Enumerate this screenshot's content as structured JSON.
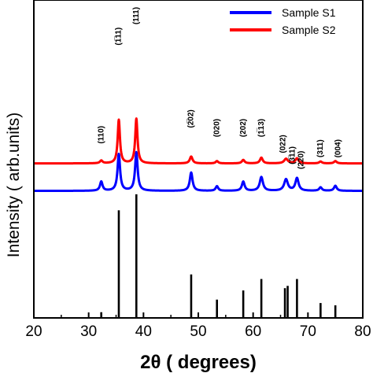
{
  "chart_data": {
    "type": "line",
    "xlabel": "2θ  ( degrees)",
    "ylabel": "Intensity ( arb.units)",
    "xlim": [
      20,
      80
    ],
    "x_ticks": [
      "20",
      "30",
      "40",
      "50",
      "60",
      "70",
      "80"
    ],
    "grid": false,
    "legend_position": "top-right",
    "series": [
      {
        "name": "Sample S1",
        "color": "#0000ff",
        "baseline": 0.555,
        "peaks": [
          {
            "x": 32.3,
            "h": 0.04,
            "w": 0.28
          },
          {
            "x": 35.5,
            "h": 0.16,
            "w": 0.28
          },
          {
            "x": 38.7,
            "h": 0.168,
            "w": 0.28
          },
          {
            "x": 48.7,
            "h": 0.08,
            "w": 0.3
          },
          {
            "x": 53.4,
            "h": 0.02,
            "w": 0.28
          },
          {
            "x": 58.2,
            "h": 0.04,
            "w": 0.3
          },
          {
            "x": 61.5,
            "h": 0.06,
            "w": 0.35
          },
          {
            "x": 66.0,
            "h": 0.05,
            "w": 0.4
          },
          {
            "x": 68.0,
            "h": 0.055,
            "w": 0.35
          },
          {
            "x": 72.3,
            "h": 0.015,
            "w": 0.3
          },
          {
            "x": 75.0,
            "h": 0.022,
            "w": 0.3
          }
        ]
      },
      {
        "name": "Sample S2",
        "color": "#ff0000",
        "baseline": 0.675,
        "peaks": [
          {
            "x": 32.3,
            "h": 0.012,
            "w": 0.28
          },
          {
            "x": 35.5,
            "h": 0.19,
            "w": 0.25
          },
          {
            "x": 38.7,
            "h": 0.195,
            "w": 0.25
          },
          {
            "x": 48.7,
            "h": 0.03,
            "w": 0.3
          },
          {
            "x": 53.4,
            "h": 0.01,
            "w": 0.28
          },
          {
            "x": 58.2,
            "h": 0.015,
            "w": 0.3
          },
          {
            "x": 61.5,
            "h": 0.025,
            "w": 0.3
          },
          {
            "x": 66.0,
            "h": 0.02,
            "w": 0.4
          },
          {
            "x": 68.0,
            "h": 0.022,
            "w": 0.35
          },
          {
            "x": 72.3,
            "h": 0.008,
            "w": 0.3
          },
          {
            "x": 75.0,
            "h": 0.01,
            "w": 0.3
          }
        ]
      }
    ],
    "reference": {
      "color": "#000000",
      "sticks": [
        {
          "x": 32.3,
          "h": 0.025
        },
        {
          "x": 35.5,
          "h": 0.47
        },
        {
          "x": 38.7,
          "h": 0.54
        },
        {
          "x": 48.7,
          "h": 0.19
        },
        {
          "x": 53.4,
          "h": 0.08
        },
        {
          "x": 58.2,
          "h": 0.12
        },
        {
          "x": 61.5,
          "h": 0.17
        },
        {
          "x": 65.8,
          "h": 0.13
        },
        {
          "x": 66.3,
          "h": 0.14
        },
        {
          "x": 68.0,
          "h": 0.17
        },
        {
          "x": 72.3,
          "h": 0.065
        },
        {
          "x": 75.0,
          "h": 0.055
        }
      ]
    },
    "peak_labels": [
      {
        "x": 32.3,
        "y": 0.8,
        "text": "(110)"
      },
      {
        "x": 35.5,
        "y": 1.23,
        "text": "(1̅11)"
      },
      {
        "x": 38.7,
        "y": 1.32,
        "text": "(111)"
      },
      {
        "x": 48.7,
        "y": 0.87,
        "text": "(2̅02)"
      },
      {
        "x": 53.4,
        "y": 0.83,
        "text": "(020)"
      },
      {
        "x": 58.2,
        "y": 0.83,
        "text": "(202)"
      },
      {
        "x": 61.5,
        "y": 0.83,
        "text": "(1̅13)"
      },
      {
        "x": 65.5,
        "y": 0.76,
        "text": "(022)"
      },
      {
        "x": 67.2,
        "y": 0.71,
        "text": "(3̅11)"
      },
      {
        "x": 68.8,
        "y": 0.69,
        "text": "(220)"
      },
      {
        "x": 72.3,
        "y": 0.74,
        "text": "(311)"
      },
      {
        "x": 75.5,
        "y": 0.74,
        "text": "(004)"
      }
    ]
  }
}
